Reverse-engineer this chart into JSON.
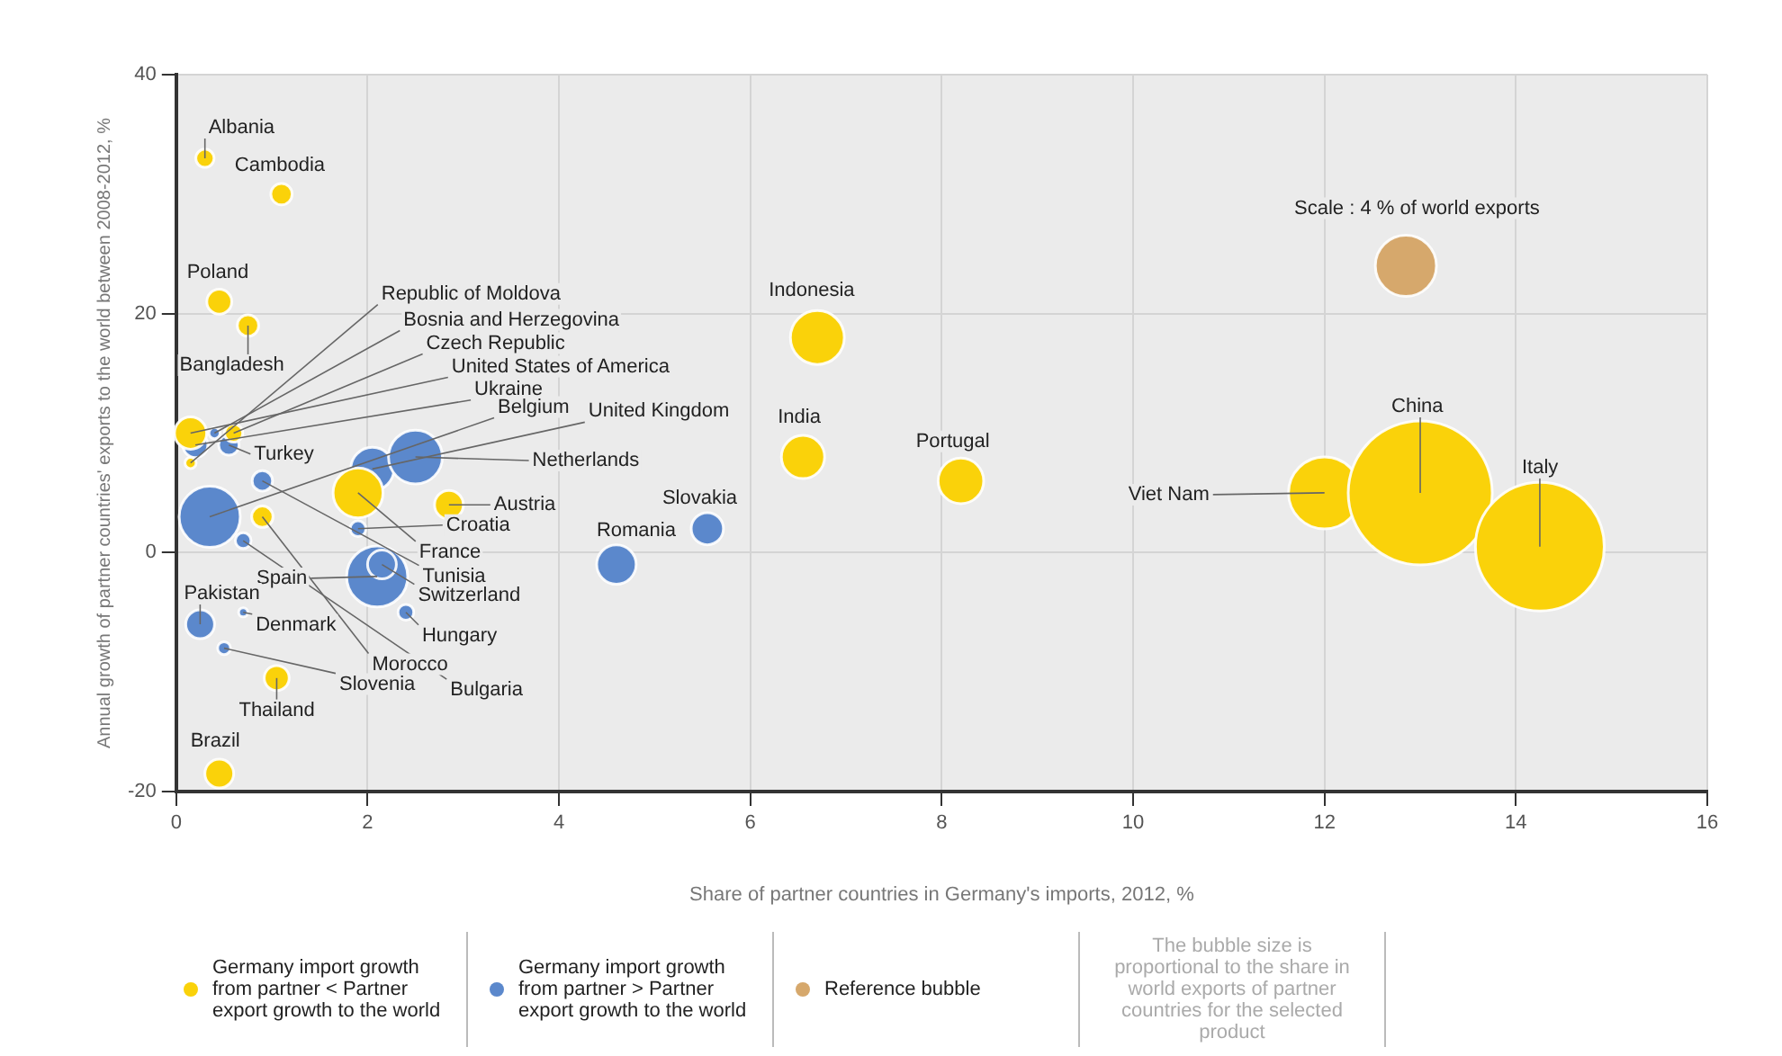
{
  "chart_data": {
    "type": "bubble",
    "xlabel": "Share of partner countries in Germany's imports, 2012, %",
    "ylabel": "Annual growth of partner countries' exports to the world between 2008-2012, %",
    "xlim": [
      0,
      16
    ],
    "xticks": [
      0,
      2,
      4,
      6,
      8,
      10,
      12,
      14,
      16
    ],
    "ylim": [
      -20,
      40
    ],
    "yticks": [
      -20,
      0,
      20,
      40
    ],
    "grid": true,
    "legend": "bottom",
    "series": [
      {
        "name": "Germany import growth from partner < Partner export growth to the world",
        "color": "#fad20a",
        "x": [
          0.3,
          1.1,
          0.45,
          0.75,
          0.15,
          0.6,
          0.15,
          1.9,
          2.85,
          0.9,
          1.05,
          0.45,
          6.7,
          6.55,
          8.2,
          12,
          13,
          14.25
        ],
        "values": [
          33,
          30,
          21,
          19,
          10,
          10,
          7.5,
          5,
          4,
          3,
          -10.5,
          -18.5,
          18,
          8,
          6,
          5,
          5,
          0.5
        ],
        "sizes": [
          0.016,
          0.022,
          0.03,
          0.022,
          0.05,
          0.016,
          0.006,
          0.12,
          0.04,
          0.022,
          0.03,
          0.04,
          0.14,
          0.09,
          0.1,
          0.25,
          1,
          0.8
        ]
      },
      {
        "name": "Germany import growth from partner > Partner export growth to the world",
        "color": "#5b88cc",
        "x": [
          0.2,
          0.55,
          0.4,
          0.35,
          2.05,
          2.5,
          1.9,
          0.9,
          2.1,
          2.15,
          2.4,
          0.7,
          0.25,
          0.7,
          0.5,
          4.6,
          5.55
        ],
        "values": [
          9,
          9,
          10,
          3,
          7,
          8,
          2,
          6,
          -2,
          -1,
          -5,
          1,
          -6,
          -5,
          -8,
          -1,
          2
        ],
        "sizes": [
          0.03,
          0.02,
          0.006,
          0.18,
          0.09,
          0.14,
          0.012,
          0.02,
          0.18,
          0.04,
          0.012,
          0.012,
          0.04,
          0.004,
          0.008,
          0.075,
          0.05
        ]
      },
      {
        "name": "Reference bubble",
        "color": "#d6a86c",
        "x": [
          12.85
        ],
        "values": [
          24
        ],
        "sizes": [
          0.18
        ]
      }
    ],
    "annotations": [
      {
        "text": "Albania",
        "x": 0.3,
        "y": 33
      },
      {
        "text": "Cambodia",
        "x": 1.1,
        "y": 30
      },
      {
        "text": "Poland",
        "x": 0.45,
        "y": 21
      },
      {
        "text": "Bangladesh",
        "x": 0.75,
        "y": 19
      },
      {
        "text": "United States of America",
        "x": 0.15,
        "y": 10
      },
      {
        "text": "Czech Republic",
        "x": 0.6,
        "y": 10
      },
      {
        "text": "Republic of Moldova",
        "x": 0.15,
        "y": 7.5
      },
      {
        "text": "France",
        "x": 1.9,
        "y": 5
      },
      {
        "text": "Austria",
        "x": 2.85,
        "y": 4
      },
      {
        "text": "Morocco",
        "x": 0.9,
        "y": 3
      },
      {
        "text": "Thailand",
        "x": 1.05,
        "y": -10.5
      },
      {
        "text": "Brazil",
        "x": 0.45,
        "y": -18.5
      },
      {
        "text": "Indonesia",
        "x": 6.7,
        "y": 18
      },
      {
        "text": "India",
        "x": 6.55,
        "y": 8
      },
      {
        "text": "Portugal",
        "x": 8.2,
        "y": 6
      },
      {
        "text": "Viet Nam",
        "x": 12,
        "y": 5
      },
      {
        "text": "China",
        "x": 13,
        "y": 5
      },
      {
        "text": "Italy",
        "x": 14.25,
        "y": 0.5
      },
      {
        "text": "Ukraine",
        "x": 0.2,
        "y": 9
      },
      {
        "text": "Turkey",
        "x": 0.55,
        "y": 9
      },
      {
        "text": "Bosnia and Herzegovina",
        "x": 0.4,
        "y": 10
      },
      {
        "text": "Belgium",
        "x": 0.35,
        "y": 3
      },
      {
        "text": "United Kingdom",
        "x": 2.05,
        "y": 7
      },
      {
        "text": "Netherlands",
        "x": 2.5,
        "y": 8
      },
      {
        "text": "Croatia",
        "x": 1.9,
        "y": 2
      },
      {
        "text": "Tunisia",
        "x": 0.9,
        "y": 6
      },
      {
        "text": "Spain",
        "x": 2.1,
        "y": -2
      },
      {
        "text": "Switzerland",
        "x": 2.15,
        "y": -1
      },
      {
        "text": "Hungary",
        "x": 2.4,
        "y": -5
      },
      {
        "text": "Bulgaria",
        "x": 0.7,
        "y": 1
      },
      {
        "text": "Pakistan",
        "x": 0.25,
        "y": -6
      },
      {
        "text": "Denmark",
        "x": 0.7,
        "y": -5
      },
      {
        "text": "Slovenia",
        "x": 0.5,
        "y": -8
      },
      {
        "text": "Romania",
        "x": 4.6,
        "y": -1
      },
      {
        "text": "Slovakia",
        "x": 5.55,
        "y": 2
      },
      {
        "text": "Scale : 4 % of world exports",
        "x": 12.85,
        "y": 24
      },
      "The bubble size is proportional to the share in world exports of partner countries for the selected product"
    ]
  }
}
